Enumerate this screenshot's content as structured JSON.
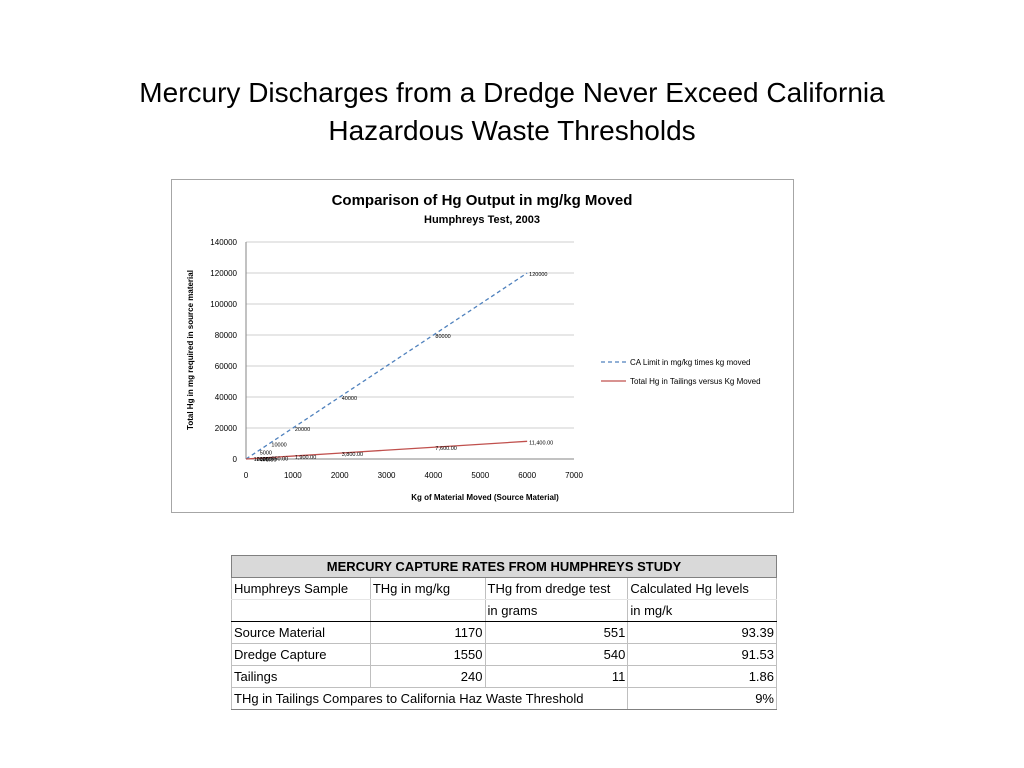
{
  "slide": {
    "title_line1": "Mercury Discharges from a Dredge Never Exceed California",
    "title_line2": "Hazardous Waste Thresholds"
  },
  "chart_data": {
    "type": "line",
    "title": "Comparison of Hg Output in mg/kg Moved",
    "subtitle": "Humphreys Test, 2003",
    "xlabel": "Kg of Material Moved (Source Material)",
    "ylabel": "Total Hg in mg required in source material",
    "xlim": [
      0,
      7000
    ],
    "ylim": [
      0,
      140000
    ],
    "x_ticks": [
      "0",
      "1000",
      "2000",
      "3000",
      "4000",
      "5000",
      "6000",
      "7000"
    ],
    "y_ticks": [
      "0",
      "20000",
      "40000",
      "60000",
      "80000",
      "100000",
      "120000",
      "140000"
    ],
    "grid": "horizontal",
    "legend_position": "right",
    "series": [
      {
        "name": "CA Limit in mg/kg times kg moved",
        "color": "#4f81bd",
        "dash": true,
        "x": [
          0,
          250,
          500,
          1000,
          1500,
          2000,
          4000,
          6000
        ],
        "y": [
          0,
          5000,
          10000,
          20000,
          30000,
          40000,
          80000,
          120000
        ],
        "labels": [
          "",
          "5000",
          "10000",
          "20000",
          "",
          "40000",
          "80000",
          "120000"
        ]
      },
      {
        "name": "Total Hg in Tailings versus Kg Moved",
        "color": "#c0504d",
        "dash": false,
        "x": [
          0,
          250,
          500,
          1000,
          2000,
          4000,
          6000
        ],
        "y": [
          0,
          475,
          950,
          1900,
          3800,
          7600,
          11400
        ],
        "labels": [
          "",
          "475.00",
          "950.00",
          "1,900.00",
          "3,800.00",
          "7,600.00",
          "11,400.00"
        ]
      }
    ],
    "cluster_labels": [
      "",
      "1000",
      "2000",
      "",
      "250",
      "95"
    ]
  },
  "table": {
    "title": "MERCURY CAPTURE RATES FROM HUMPHREYS STUDY",
    "headers": [
      "Humphreys Sample",
      "THg in mg/kg",
      "THg from dredge test",
      "Calculated Hg levels"
    ],
    "headers2": [
      "",
      "",
      "in grams",
      "in mg/k"
    ],
    "rows": [
      [
        "Source Material",
        "1170",
        "551",
        "93.39"
      ],
      [
        "Dredge Capture",
        "1550",
        "540",
        "91.53"
      ],
      [
        "Tailings",
        "240",
        "11",
        "1.86"
      ]
    ],
    "footer_label": "THg in Tailings Compares to California Haz Waste Threshold",
    "footer_value": "9%"
  }
}
